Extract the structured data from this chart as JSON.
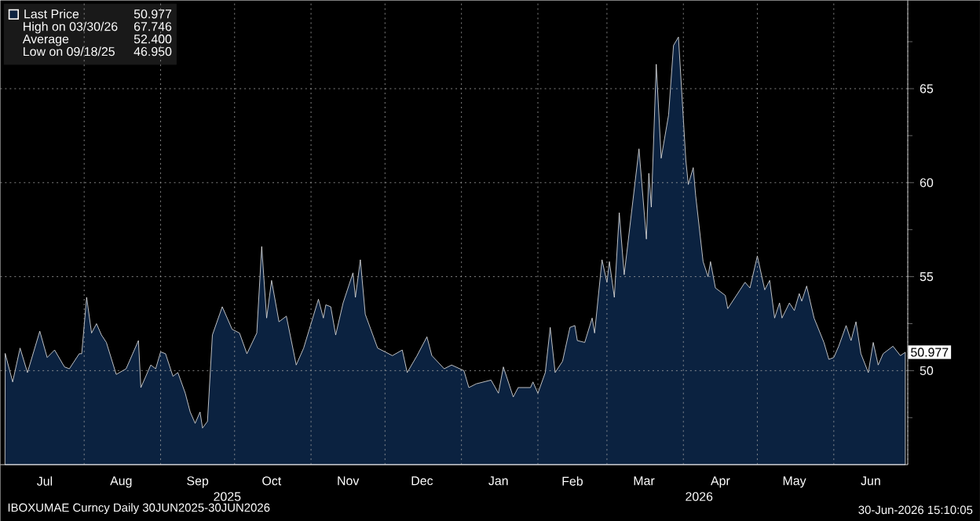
{
  "chart_data": {
    "type": "area",
    "x": [
      "2025-06-30",
      "2025-07-03",
      "2025-07-06",
      "2025-07-09",
      "2025-07-14",
      "2025-07-17",
      "2025-07-20",
      "2025-07-24",
      "2025-07-26",
      "2025-07-30",
      "2025-07-31",
      "2025-08-02",
      "2025-08-04",
      "2025-08-06",
      "2025-08-08",
      "2025-08-10",
      "2025-08-14",
      "2025-08-18",
      "2025-08-23",
      "2025-08-24",
      "2025-08-28",
      "2025-08-30",
      "2025-09-01",
      "2025-09-03",
      "2025-09-06",
      "2025-09-08",
      "2025-09-11",
      "2025-09-13",
      "2025-09-15",
      "2025-09-17",
      "2025-09-18",
      "2025-09-20",
      "2025-09-22",
      "2025-09-26",
      "2025-09-30",
      "2025-10-03",
      "2025-10-06",
      "2025-10-10",
      "2025-10-12",
      "2025-10-14",
      "2025-10-16",
      "2025-10-19",
      "2025-10-22",
      "2025-10-26",
      "2025-10-29",
      "2025-11-04",
      "2025-11-06",
      "2025-11-07",
      "2025-11-09",
      "2025-11-11",
      "2025-11-14",
      "2025-11-18",
      "2025-11-19",
      "2025-11-21",
      "2025-11-23",
      "2025-11-28",
      "2025-12-04",
      "2025-12-08",
      "2025-12-10",
      "2025-12-14",
      "2025-12-18",
      "2025-12-20",
      "2025-12-25",
      "2025-12-28",
      "2026-01-02",
      "2026-01-04",
      "2026-01-07",
      "2026-01-13",
      "2026-01-16",
      "2026-01-18",
      "2026-01-22",
      "2026-01-24",
      "2026-01-29",
      "2026-01-30",
      "2026-02-01",
      "2026-02-04",
      "2026-02-06",
      "2026-02-08",
      "2026-02-11",
      "2026-02-14",
      "2026-02-16",
      "2026-02-17",
      "2026-02-20",
      "2026-02-23",
      "2026-02-24",
      "2026-02-27",
      "2026-03-01",
      "2026-03-02",
      "2026-03-04",
      "2026-03-06",
      "2026-03-08",
      "2026-03-14",
      "2026-03-17",
      "2026-03-18",
      "2026-03-19",
      "2026-03-21",
      "2026-03-23",
      "2026-03-26",
      "2026-03-28",
      "2026-03-30",
      "2026-04-02",
      "2026-04-03",
      "2026-04-05",
      "2026-04-06",
      "2026-04-09",
      "2026-04-11",
      "2026-04-12",
      "2026-04-14",
      "2026-04-18",
      "2026-04-19",
      "2026-04-24",
      "2026-04-26",
      "2026-04-28",
      "2026-05-01",
      "2026-05-04",
      "2026-05-06",
      "2026-05-08",
      "2026-05-10",
      "2026-05-11",
      "2026-05-14",
      "2026-05-16",
      "2026-05-18",
      "2026-05-19",
      "2026-05-21",
      "2026-05-24",
      "2026-05-28",
      "2026-05-30",
      "2026-06-01",
      "2026-06-03",
      "2026-06-06",
      "2026-06-08",
      "2026-06-10",
      "2026-06-12",
      "2026-06-15",
      "2026-06-17",
      "2026-06-19",
      "2026-06-21",
      "2026-06-25",
      "2026-06-28",
      "2026-06-30"
    ],
    "series": [
      {
        "name": "Last Price",
        "color": "#0b2240",
        "values": [
          50.9,
          49.4,
          51.2,
          49.9,
          52.1,
          50.7,
          51.1,
          50.2,
          50.1,
          50.9,
          50.9,
          53.9,
          52.0,
          52.5,
          51.9,
          51.5,
          49.8,
          50.1,
          51.6,
          49.1,
          50.3,
          50.1,
          51.0,
          50.9,
          49.7,
          49.9,
          48.8,
          47.8,
          47.2,
          47.8,
          46.95,
          47.3,
          51.9,
          53.4,
          52.2,
          52.0,
          50.9,
          52.0,
          56.6,
          52.8,
          54.8,
          52.6,
          52.9,
          50.3,
          51.2,
          53.8,
          52.8,
          53.5,
          53.4,
          51.9,
          53.6,
          55.2,
          53.9,
          55.9,
          53.0,
          51.2,
          50.8,
          51.1,
          49.9,
          50.8,
          51.8,
          50.8,
          50.1,
          50.3,
          50.0,
          49.1,
          49.3,
          49.5,
          48.8,
          50.2,
          48.6,
          49.1,
          49.1,
          49.4,
          48.8,
          49.9,
          52.3,
          49.9,
          50.5,
          52.3,
          52.4,
          51.6,
          51.5,
          52.8,
          52.0,
          55.9,
          54.7,
          55.8,
          53.9,
          58.4,
          55.1,
          61.8,
          57.0,
          60.5,
          58.7,
          66.3,
          61.3,
          63.6,
          67.3,
          67.746,
          61.2,
          59.9,
          60.8,
          59.3,
          55.8,
          55.0,
          55.8,
          54.4,
          54.0,
          53.3,
          54.3,
          54.7,
          54.4,
          56.1,
          54.3,
          54.8,
          52.8,
          53.6,
          52.8,
          53.6,
          53.2,
          54.1,
          53.7,
          54.5,
          52.8,
          51.5,
          50.6,
          50.7,
          51.3,
          52.4,
          51.6,
          52.6,
          50.9,
          49.9,
          51.5,
          50.3,
          50.9,
          51.3,
          50.8,
          50.977
        ],
        "value_labels": [
          null,
          null,
          null,
          null,
          null,
          null,
          null,
          null,
          null,
          null,
          null,
          null,
          null,
          null,
          null,
          null,
          null,
          null,
          null,
          null,
          null,
          null,
          null,
          null,
          null,
          null,
          null,
          null,
          null,
          null,
          null,
          null,
          null,
          null,
          null,
          null,
          null,
          null,
          null,
          null,
          null,
          null,
          null,
          null,
          null,
          null,
          null,
          null,
          null,
          null,
          null,
          null,
          null,
          null,
          null,
          null,
          null,
          null,
          null,
          null,
          null,
          null,
          null,
          null,
          null,
          null,
          null,
          null,
          null,
          null,
          null,
          null,
          null,
          null,
          null,
          null,
          null,
          null,
          null,
          null,
          null,
          null,
          null,
          null,
          null,
          null,
          null,
          null,
          null,
          null,
          null,
          null,
          null,
          null,
          null,
          null,
          null,
          null,
          null,
          null,
          null,
          null,
          null,
          null,
          null,
          null,
          null,
          null,
          null,
          null,
          null,
          null,
          null,
          null,
          null,
          null,
          null,
          null,
          null,
          null,
          null,
          null,
          null,
          null,
          null,
          null,
          null,
          null,
          null,
          null,
          null,
          null,
          null,
          null,
          null,
          null,
          null,
          null,
          null,
          "50.977"
        ]
      }
    ],
    "xlim": [
      "2025-06-28",
      "2026-07-01"
    ],
    "xticks": [
      {
        "value": "2025-07-16",
        "label": "Jul"
      },
      {
        "value": "2025-08-16",
        "label": "Aug"
      },
      {
        "value": "2025-09-16",
        "label": "Sep"
      },
      {
        "value": "2025-10-16",
        "label": "Oct"
      },
      {
        "value": "2025-11-16",
        "label": "Nov"
      },
      {
        "value": "2025-12-16",
        "label": "Dec"
      },
      {
        "value": "2026-01-16",
        "label": "Jan"
      },
      {
        "value": "2026-02-15",
        "label": "Feb"
      },
      {
        "value": "2026-03-16",
        "label": "Mar"
      },
      {
        "value": "2026-04-16",
        "label": "Apr"
      },
      {
        "value": "2026-05-16",
        "label": "May"
      },
      {
        "value": "2026-06-16",
        "label": "Jun"
      },
      {
        "value": "2025-08-01",
        "label": null
      },
      {
        "value": "2025-09-01",
        "label": null
      },
      {
        "value": "2025-10-01",
        "label": null
      },
      {
        "value": "2025-11-01",
        "label": null
      },
      {
        "value": "2025-12-01",
        "label": null
      },
      {
        "value": "2026-01-01",
        "label": null
      },
      {
        "value": "2026-02-01",
        "label": null
      },
      {
        "value": "2026-03-01",
        "label": null
      },
      {
        "value": "2026-04-01",
        "label": null
      },
      {
        "value": "2026-05-01",
        "label": null
      },
      {
        "value": "2026-06-01",
        "label": null
      },
      {
        "value": "2026-07-01",
        "label": null
      }
    ],
    "ylim": [
      45,
      69.7
    ],
    "yticks": [
      50,
      55,
      60,
      65,
      {
        "value": 47.5,
        "label": null
      },
      {
        "value": 52.5,
        "label": null
      },
      {
        "value": 57.5,
        "label": null
      },
      {
        "value": 62.5,
        "label": null
      },
      {
        "value": 67.5,
        "label": null
      }
    ],
    "grid": true,
    "legend": "top left",
    "annotations": [
      "2025",
      "2026",
      "High on 03/30/26",
      "67.746",
      "Average",
      "52.400",
      "Low on 09/18/25",
      "46.950",
      "IBOXUMAE Curncy Daily 30JUN2025-30JUN2026",
      "30-Jun-2026 15:10:05"
    ]
  }
}
